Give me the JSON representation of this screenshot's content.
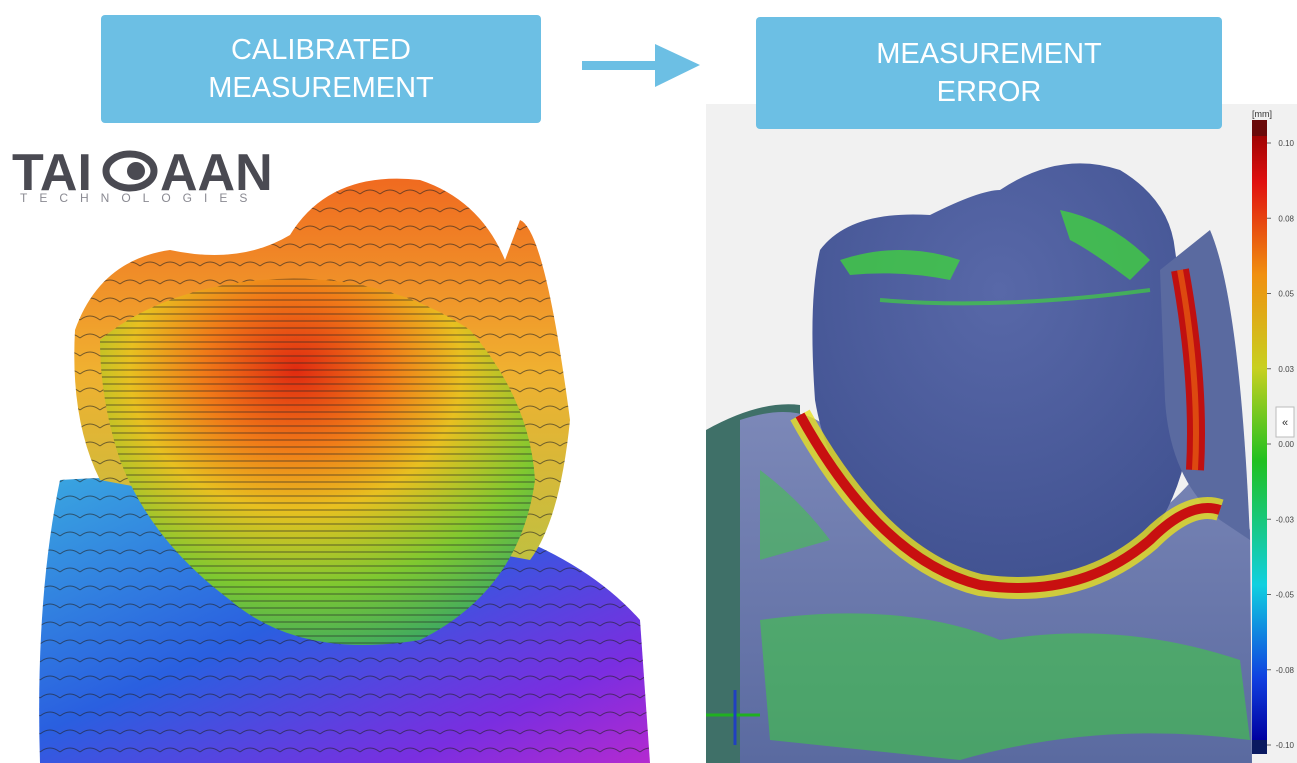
{
  "header": {
    "left_label": [
      "CALIBRATED",
      "MEASUREMENT"
    ],
    "right_label": [
      "MEASUREMENT",
      "ERROR"
    ]
  },
  "logo": {
    "name_start": "TAI",
    "name_end": "AAN",
    "tagline": "TECHNOLOGIES"
  },
  "colorbar": {
    "unit": "[mm]",
    "ticks": [
      "0.10",
      "0.08",
      "0.05",
      "0.03",
      "0.00",
      "-0.03",
      "-0.05",
      "-0.08",
      "-0.10"
    ],
    "collapse_button": "«"
  }
}
